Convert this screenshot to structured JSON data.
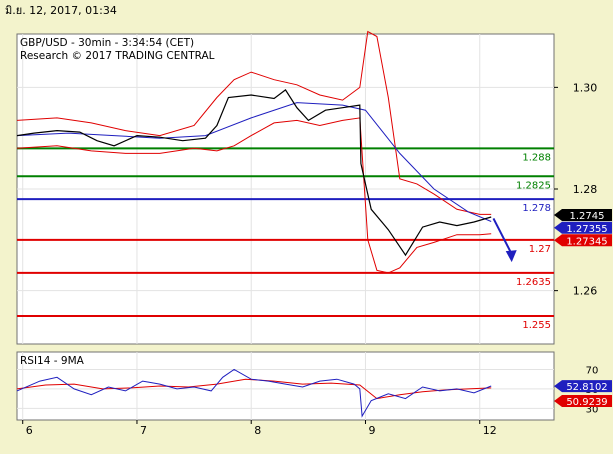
{
  "header": {
    "date": "มิ.ย. 12, 2017, 01:34"
  },
  "chart_data": [
    {
      "type": "line",
      "title": "GBP/USD - 30min - 3:34:54 (CET)",
      "subtitle": "Research © 2017 TRADING CENTRAL",
      "x_ticks": [
        "6",
        "7",
        "8",
        "9",
        "12"
      ],
      "x_tick_pos": [
        0.0,
        1.0,
        2.0,
        3.0,
        4.0
      ],
      "xlim": [
        -0.05,
        4.65
      ],
      "y_ticks": [
        1.3,
        1.28,
        1.26
      ],
      "y_tick_labels": [
        "1.30",
        "1.28",
        "1.26"
      ],
      "ylim": [
        1.2495,
        1.3105
      ],
      "levels": [
        {
          "value": 1.288,
          "label": "1.288",
          "color": "#008000"
        },
        {
          "value": 1.2825,
          "label": "1.2825",
          "color": "#008000"
        },
        {
          "value": 1.278,
          "label": "1.278",
          "color": "#1f1fbf"
        },
        {
          "value": 1.27,
          "label": "1.27",
          "color": "#e00000"
        },
        {
          "value": 1.2635,
          "label": "1.2635",
          "color": "#e00000"
        },
        {
          "value": 1.255,
          "label": "1.255",
          "color": "#e00000"
        }
      ],
      "price_tags": [
        {
          "value": 1.2745,
          "label": "1.2745",
          "color": "#000000"
        },
        {
          "value": 1.27355,
          "label": "1.27355",
          "color": "#1f1fbf"
        },
        {
          "value": 1.27345,
          "label": "1.27345",
          "color": "#e00000"
        }
      ],
      "price_x": [
        -0.05,
        0.1,
        0.3,
        0.5,
        0.65,
        0.8,
        1.0,
        1.2,
        1.4,
        1.6,
        1.7,
        1.8,
        2.0,
        2.2,
        2.3,
        2.4,
        2.5,
        2.65,
        2.8,
        2.95,
        2.96,
        3.05,
        3.2,
        3.35,
        3.5,
        3.65,
        3.8,
        3.95,
        4.1
      ],
      "price_y": [
        1.2905,
        1.291,
        1.2915,
        1.2912,
        1.2895,
        1.2885,
        1.2905,
        1.2902,
        1.2895,
        1.29,
        1.2925,
        1.298,
        1.2985,
        1.2978,
        1.2995,
        1.296,
        1.2935,
        1.2955,
        1.296,
        1.2965,
        1.285,
        1.276,
        1.272,
        1.267,
        1.2725,
        1.2735,
        1.2728,
        1.2735,
        1.2745
      ],
      "ma_x": [
        -0.05,
        0.4,
        0.8,
        1.2,
        1.6,
        2.0,
        2.4,
        2.8,
        3.0,
        3.3,
        3.6,
        3.9,
        4.1
      ],
      "ma_y": [
        1.2905,
        1.291,
        1.2905,
        1.29,
        1.2905,
        1.294,
        1.297,
        1.2965,
        1.2955,
        1.287,
        1.28,
        1.2755,
        1.2736
      ],
      "bb_upper_x": [
        -0.05,
        0.3,
        0.6,
        0.9,
        1.2,
        1.5,
        1.7,
        1.85,
        2.0,
        2.2,
        2.4,
        2.6,
        2.8,
        2.95,
        3.02,
        3.1,
        3.2,
        3.3,
        3.45,
        3.6,
        3.8,
        4.0,
        4.1
      ],
      "bb_upper_y": [
        1.2935,
        1.294,
        1.293,
        1.2915,
        1.2905,
        1.2925,
        1.298,
        1.3015,
        1.303,
        1.3015,
        1.3005,
        1.2985,
        1.2975,
        1.3,
        1.311,
        1.31,
        1.298,
        1.282,
        1.281,
        1.279,
        1.276,
        1.275,
        1.275
      ],
      "bb_lower_x": [
        -0.05,
        0.3,
        0.6,
        0.9,
        1.2,
        1.5,
        1.7,
        1.85,
        2.0,
        2.2,
        2.4,
        2.6,
        2.8,
        2.95,
        3.02,
        3.1,
        3.2,
        3.3,
        3.45,
        3.6,
        3.8,
        4.0,
        4.1
      ],
      "bb_lower_y": [
        1.288,
        1.2885,
        1.2875,
        1.287,
        1.287,
        1.288,
        1.2875,
        1.2885,
        1.2905,
        1.293,
        1.2935,
        1.2925,
        1.2935,
        1.294,
        1.27,
        1.264,
        1.2635,
        1.2645,
        1.2685,
        1.2695,
        1.271,
        1.271,
        1.2712
      ],
      "forecast_arrow": {
        "x": [
          4.12,
          4.28
        ],
        "y": [
          1.2742,
          1.266
        ]
      }
    },
    {
      "type": "line",
      "title": "RSI14 - 9MA",
      "y_ticks": [
        70,
        50,
        30
      ],
      "y_tick_labels": [
        "70",
        "50",
        "30"
      ],
      "ylim": [
        18,
        88
      ],
      "price_tags": [
        {
          "value": 52.8102,
          "label": "52.8102",
          "color": "#1f1fbf"
        },
        {
          "value": 50.9239,
          "label": "50.9239",
          "color": "#e00000"
        }
      ],
      "rsi_x": [
        -0.05,
        0.15,
        0.3,
        0.45,
        0.6,
        0.75,
        0.9,
        1.05,
        1.2,
        1.35,
        1.5,
        1.65,
        1.75,
        1.85,
        2.0,
        2.15,
        2.3,
        2.45,
        2.6,
        2.75,
        2.9,
        2.95,
        2.97,
        3.05,
        3.2,
        3.35,
        3.5,
        3.65,
        3.8,
        3.95,
        4.1
      ],
      "rsi_y": [
        48,
        58,
        62,
        50,
        44,
        52,
        48,
        58,
        55,
        50,
        52,
        48,
        62,
        70,
        60,
        58,
        55,
        52,
        58,
        60,
        55,
        50,
        22,
        38,
        45,
        40,
        52,
        48,
        50,
        46,
        53
      ],
      "ma_x": [
        -0.05,
        0.2,
        0.45,
        0.7,
        0.95,
        1.2,
        1.45,
        1.7,
        1.95,
        2.2,
        2.45,
        2.7,
        2.95,
        3.1,
        3.3,
        3.5,
        3.7,
        3.9,
        4.1
      ],
      "ma_y": [
        50,
        54,
        55,
        50,
        51,
        53,
        52,
        55,
        60,
        58,
        55,
        56,
        54,
        40,
        44,
        47,
        49,
        50,
        51
      ]
    }
  ]
}
